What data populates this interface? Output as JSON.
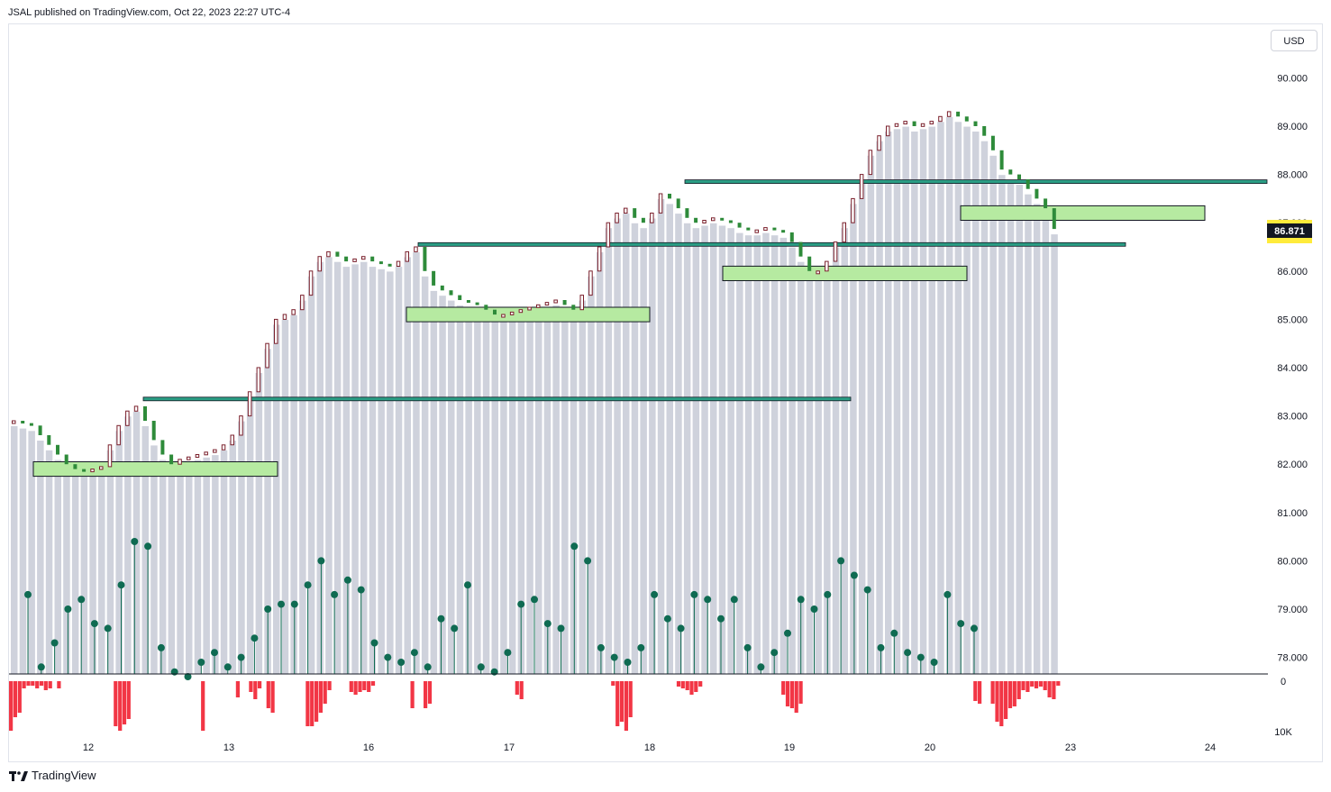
{
  "header": {
    "published": "JSAL published on TradingView.com, Oct 22, 2023 22:27 UTC-4"
  },
  "currency_button": "USD",
  "last_price_label": "86.871",
  "footer": {
    "brand": "TradingView"
  },
  "colors": {
    "accent_green": "#2e8b3a",
    "candle_outline": "#7a1f2b",
    "zone_fill": "#b6eaa1",
    "level_line": "#2a9d84",
    "volume_bar": "#cfd2dc",
    "lollipop": "#0f6b52",
    "delta_bar": "#f23645",
    "price_tag_bg": "#131722",
    "price_tag_highlight": "#ffeb3b"
  },
  "chart_data": {
    "type": "candlestick",
    "price_axis": {
      "ticks": [
        78.0,
        79.0,
        80.0,
        81.0,
        82.0,
        83.0,
        84.0,
        85.0,
        86.0,
        87.0,
        88.0,
        89.0,
        90.0
      ],
      "tick_labels": [
        "78.000",
        "79.000",
        "80.000",
        "81.000",
        "82.000",
        "83.000",
        "84.000",
        "85.000",
        "86.000",
        "87.000",
        "88.000",
        "89.000",
        "90.000"
      ]
    },
    "x_axis": {
      "tick_labels": [
        "12",
        "13",
        "16",
        "17",
        "18",
        "19",
        "20",
        "23",
        "24"
      ]
    },
    "delta_axis": {
      "tick_labels": [
        "0",
        "10K"
      ]
    },
    "last_price": 86.871,
    "close_series": [
      82.9,
      82.85,
      82.8,
      82.6,
      82.4,
      82.2,
      82.0,
      81.9,
      81.85,
      81.9,
      81.95,
      82.4,
      82.8,
      83.1,
      83.2,
      82.9,
      82.5,
      82.2,
      82.0,
      82.1,
      82.15,
      82.2,
      82.25,
      82.3,
      82.4,
      82.6,
      83.0,
      83.5,
      84.0,
      84.5,
      85.0,
      85.1,
      85.2,
      85.5,
      86.0,
      86.3,
      86.4,
      86.3,
      86.2,
      86.25,
      86.3,
      86.2,
      86.15,
      86.1,
      86.2,
      86.4,
      86.5,
      86.0,
      85.7,
      85.6,
      85.5,
      85.4,
      85.35,
      85.3,
      85.2,
      85.1,
      85.1,
      85.15,
      85.2,
      85.25,
      85.3,
      85.35,
      85.4,
      85.3,
      85.2,
      85.5,
      86.0,
      86.5,
      87.0,
      87.2,
      87.3,
      87.1,
      87.0,
      87.2,
      87.6,
      87.5,
      87.3,
      87.1,
      87.0,
      87.05,
      87.1,
      87.05,
      87.0,
      86.9,
      86.85,
      86.85,
      86.9,
      86.85,
      86.8,
      86.6,
      86.3,
      86.0,
      86.0,
      86.2,
      86.6,
      87.0,
      87.5,
      88.0,
      88.5,
      88.8,
      89.0,
      89.05,
      89.1,
      89.0,
      89.05,
      89.1,
      89.2,
      89.3,
      89.2,
      89.1,
      89.0,
      88.8,
      88.5,
      88.1,
      88.0,
      87.9,
      87.7,
      87.5,
      87.3,
      86.871
    ],
    "support_zones": [
      {
        "from_day": "12",
        "price_low": 81.75,
        "price_high": 82.05
      },
      {
        "from_day": "16",
        "price_low": 84.95,
        "price_high": 85.25
      },
      {
        "from_day": "18",
        "price_low": 85.8,
        "price_high": 86.1
      },
      {
        "from_day": "20",
        "price_low": 87.05,
        "price_high": 87.35
      }
    ],
    "resistance_levels": [
      {
        "price": 83.35,
        "from_day": "12",
        "to_day": "19"
      },
      {
        "price": 86.55,
        "from_day": "16",
        "to_day": "23"
      },
      {
        "price": 87.85,
        "from_day": "18",
        "to_day": "24"
      }
    ],
    "lollipop_levels": [
      79.3,
      77.8,
      78.3,
      79.0,
      79.2,
      78.7,
      78.6,
      79.5,
      80.4,
      80.3,
      78.2,
      77.7,
      77.6,
      77.9,
      78.1,
      77.8,
      78.0,
      78.4,
      79.0,
      79.1,
      79.1,
      79.5,
      80.0,
      79.3,
      79.6,
      79.4,
      78.3,
      78.0,
      77.9,
      78.1,
      77.8,
      78.8,
      78.6,
      79.5,
      77.8,
      77.7,
      78.1,
      79.1,
      79.2,
      78.7,
      78.6,
      80.3,
      80.0,
      78.2,
      78.0,
      77.9,
      78.2,
      79.3,
      78.8,
      78.6,
      79.3,
      79.2,
      78.8,
      79.2,
      78.2,
      77.8,
      78.1,
      78.5,
      79.2,
      79.0,
      79.3,
      80.0,
      79.7,
      79.4,
      78.2,
      78.5,
      78.1,
      78.0,
      77.9,
      79.3,
      78.7,
      78.6
    ]
  }
}
